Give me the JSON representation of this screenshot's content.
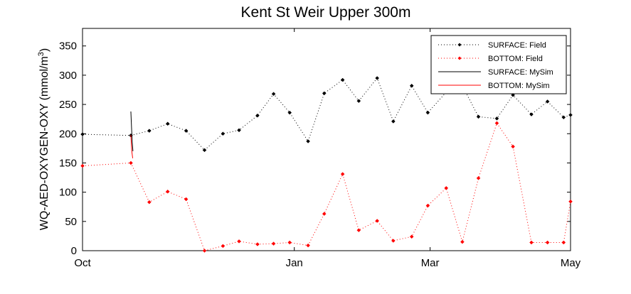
{
  "chart_data": {
    "type": "line",
    "title": "Kent St Weir Upper 300m",
    "ylabel": "WQ-AED-OXYGEN-OXY (mmol/m",
    "ylabel_sup": "3",
    "ylabel_close": ")",
    "xlabel": "",
    "ylim": [
      0,
      380
    ],
    "yticks": [
      0,
      50,
      100,
      150,
      200,
      250,
      300,
      350
    ],
    "xlim": [
      0,
      212
    ],
    "xticks": [
      {
        "label": "Oct",
        "value": 0
      },
      {
        "label": "Jan",
        "value": 92
      },
      {
        "label": "Mar",
        "value": 151
      },
      {
        "label": "May",
        "value": 212
      }
    ],
    "grid": false,
    "legend_position": "top-right",
    "series": [
      {
        "name": "SURFACE: Field",
        "color": "#000000",
        "style": "dotted-marker",
        "x": [
          0,
          21,
          29,
          37,
          45,
          53,
          61,
          68,
          76,
          83,
          90,
          98,
          105,
          113,
          120,
          128,
          135,
          143,
          150,
          158,
          165,
          172,
          180,
          187,
          195,
          202,
          209,
          212
        ],
        "y": [
          199,
          197,
          205,
          217,
          205,
          172,
          200,
          206,
          231,
          268,
          236,
          187,
          269,
          292,
          256,
          295,
          221,
          282,
          236,
          271,
          282,
          229,
          226,
          266,
          233,
          255,
          228,
          232
        ]
      },
      {
        "name": "BOTTOM: Field",
        "color": "#ff0000",
        "style": "dotted-marker",
        "x": [
          0,
          21,
          29,
          37,
          45,
          53,
          61,
          68,
          76,
          83,
          90,
          98,
          105,
          113,
          120,
          128,
          135,
          143,
          150,
          158,
          165,
          172,
          180,
          187,
          195,
          202,
          209,
          212
        ],
        "y": [
          145,
          150,
          83,
          101,
          88,
          0,
          8,
          16,
          11,
          12,
          14,
          9,
          63,
          131,
          35,
          51,
          17,
          24,
          77,
          107,
          15,
          124,
          218,
          178,
          14,
          14,
          14,
          84
        ]
      },
      {
        "name": "SURFACE: MySim",
        "color": "#000000",
        "style": "solid",
        "x": [
          21,
          21.3,
          21.6,
          21.9
        ],
        "y": [
          238,
          210,
          185,
          170
        ]
      },
      {
        "name": "BOTTOM: MySim",
        "color": "#ff0000",
        "style": "solid",
        "x": [
          21,
          21.4,
          21.8
        ],
        "y": [
          198,
          170,
          158
        ]
      }
    ]
  }
}
